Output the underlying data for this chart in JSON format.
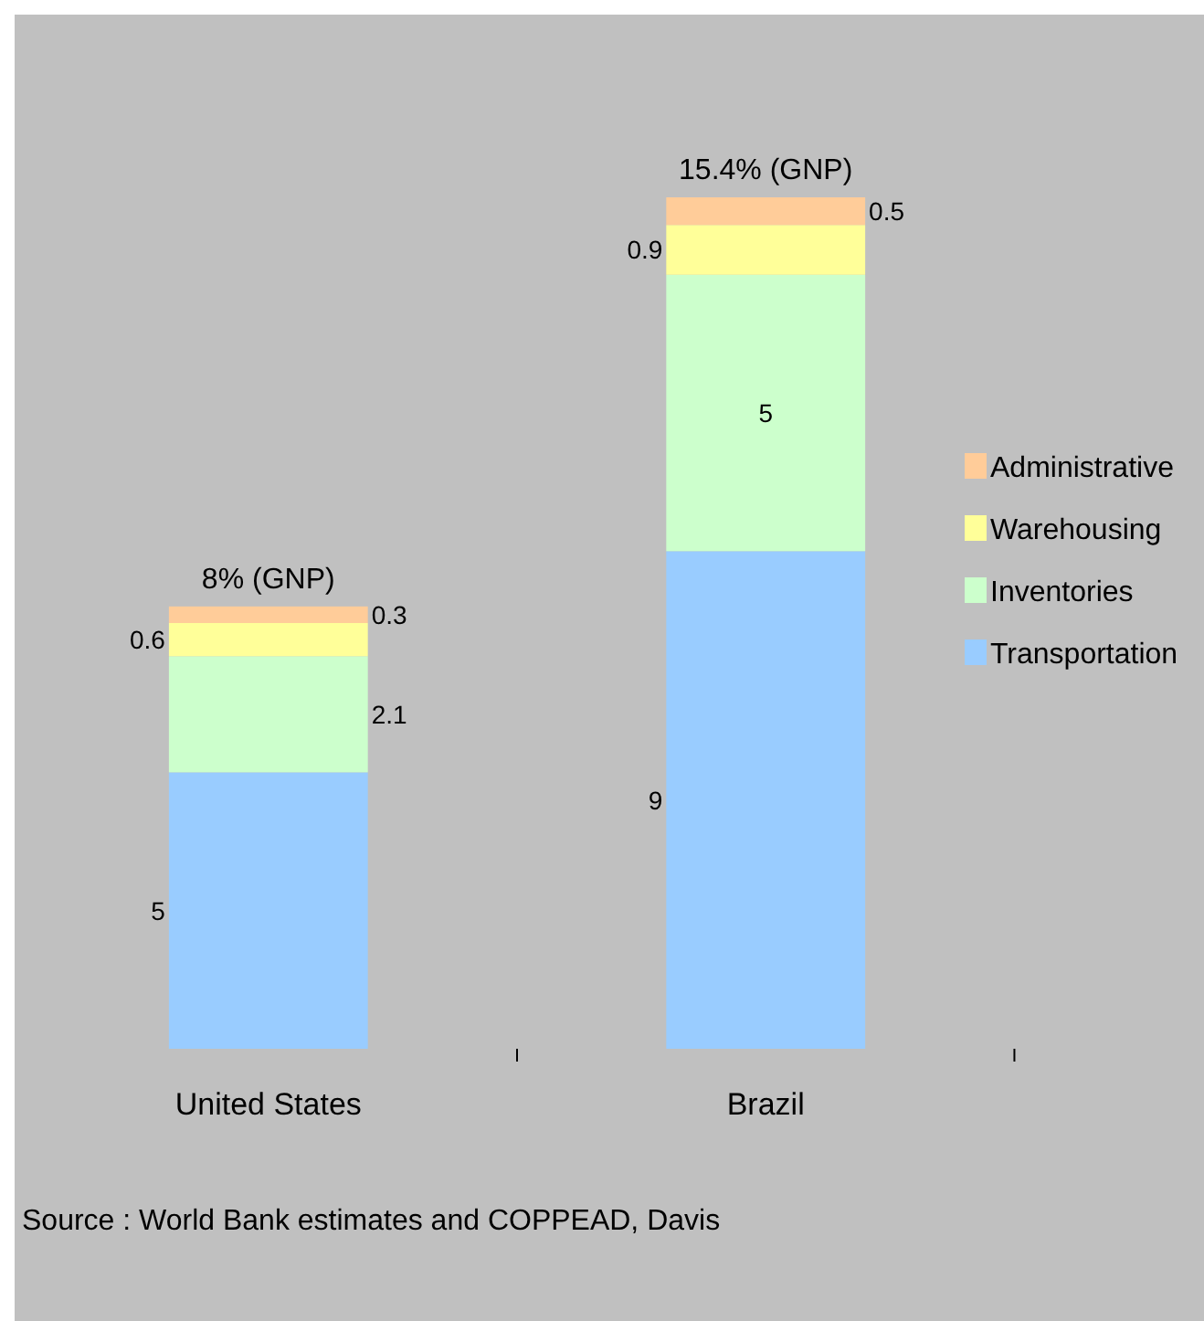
{
  "chart_data": {
    "type": "bar",
    "stacked": true,
    "categories": [
      "United States",
      "Brazil"
    ],
    "series": [
      {
        "name": "Transportation",
        "color": "#99ccff",
        "values": [
          5,
          9
        ]
      },
      {
        "name": "Inventories",
        "color": "#ccffcc",
        "values": [
          2.1,
          5
        ]
      },
      {
        "name": "Warehousing",
        "color": "#ffff99",
        "values": [
          0.6,
          0.9
        ]
      },
      {
        "name": "Administrative",
        "color": "#ffcc99",
        "values": [
          0.3,
          0.5
        ]
      }
    ],
    "data_labels": true,
    "totals": [
      "8% (GNP)",
      "15.4% (GNP)"
    ],
    "legend": "right",
    "annotations": [
      "Source : World Bank estimates and COPPEAD, Davis"
    ]
  }
}
